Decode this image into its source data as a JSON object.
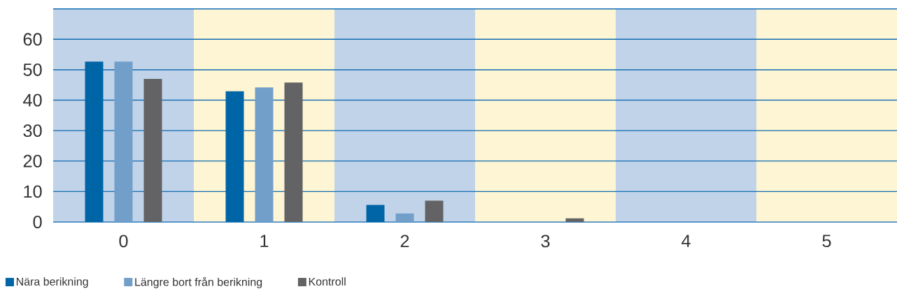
{
  "chart_data": {
    "type": "bar",
    "x": [
      0,
      1,
      2,
      3,
      4,
      5
    ],
    "xlim": [
      -0.5,
      5.5
    ],
    "xticks": [
      0,
      1,
      2,
      3,
      4,
      5
    ],
    "ylim": [
      0,
      70
    ],
    "yticks": [
      0,
      10,
      20,
      30,
      40,
      50,
      60,
      {
        "value": 70,
        "label": null
      }
    ],
    "grid": "y",
    "legend": "bottom",
    "series": [
      {
        "name": "Nära berikning",
        "color": "#0065a6",
        "values": [
          52.7,
          42.9,
          5.6,
          0,
          0,
          0
        ]
      },
      {
        "name": "Längre bort från berikning",
        "color": "#729fc9",
        "values": [
          52.7,
          44.2,
          2.8,
          0,
          0,
          0
        ]
      },
      {
        "name": "Kontroll",
        "color": "#636365",
        "values": [
          47.0,
          45.8,
          7.0,
          1.2,
          0,
          0
        ]
      }
    ],
    "bands": [
      {
        "axis": "x",
        "from": -0.5,
        "to": 0.5,
        "color": "#c1d3e8"
      },
      {
        "axis": "x",
        "from": 0.5,
        "to": 1.5,
        "color": "#fdf5d3"
      },
      {
        "axis": "x",
        "from": 1.5,
        "to": 2.5,
        "color": "#c1d3e8"
      },
      {
        "axis": "x",
        "from": 2.5,
        "to": 3.5,
        "color": "#fdf5d3"
      },
      {
        "axis": "x",
        "from": 3.5,
        "to": 4.5,
        "color": "#c1d3e8"
      },
      {
        "axis": "x",
        "from": 4.5,
        "to": 5.5,
        "color": "#fdf5d3"
      }
    ]
  }
}
